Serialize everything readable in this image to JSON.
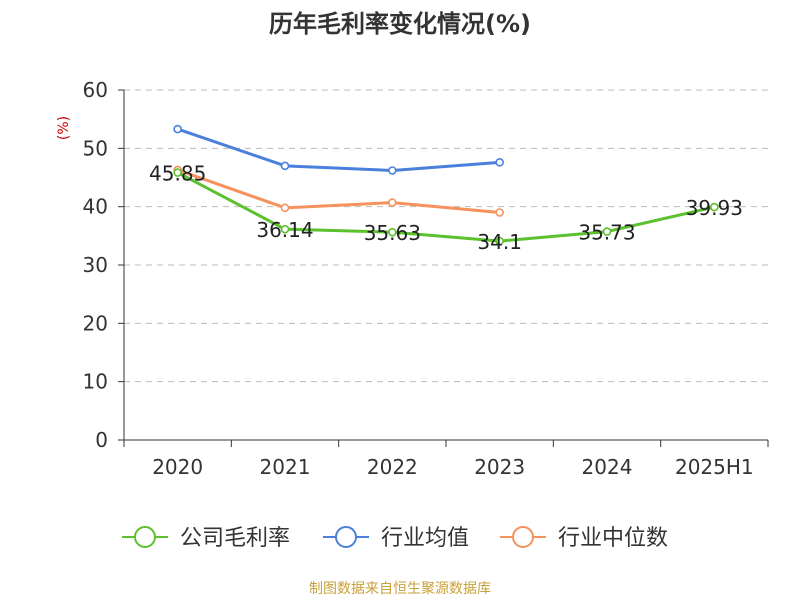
{
  "chart_data": {
    "type": "line",
    "title": "历年毛利率变化情况(%)",
    "ylabel": "(%)",
    "xlabel": "",
    "categories": [
      "2020",
      "2021",
      "2022",
      "2023",
      "2024",
      "2025H1"
    ],
    "ylim": [
      0,
      60
    ],
    "yticks": [
      0,
      10,
      20,
      30,
      40,
      50,
      60
    ],
    "grid": true,
    "legend_position": "bottom-center",
    "series": [
      {
        "name": "公司毛利率",
        "color": "#5bc12d",
        "values": [
          45.85,
          36.14,
          35.63,
          34.1,
          35.73,
          39.93
        ],
        "labels": [
          "45.85",
          "36.14",
          "35.63",
          "34.1",
          "35.73",
          "39.93"
        ]
      },
      {
        "name": "行业均值",
        "color": "#4a80db",
        "values": [
          53.3,
          47.0,
          46.2,
          47.6,
          null,
          null
        ]
      },
      {
        "name": "行业中位数",
        "color": "#f5925e",
        "values": [
          46.3,
          39.8,
          40.7,
          39.0,
          null,
          null
        ]
      }
    ]
  },
  "source": "制图数据来自恒生聚源数据库"
}
